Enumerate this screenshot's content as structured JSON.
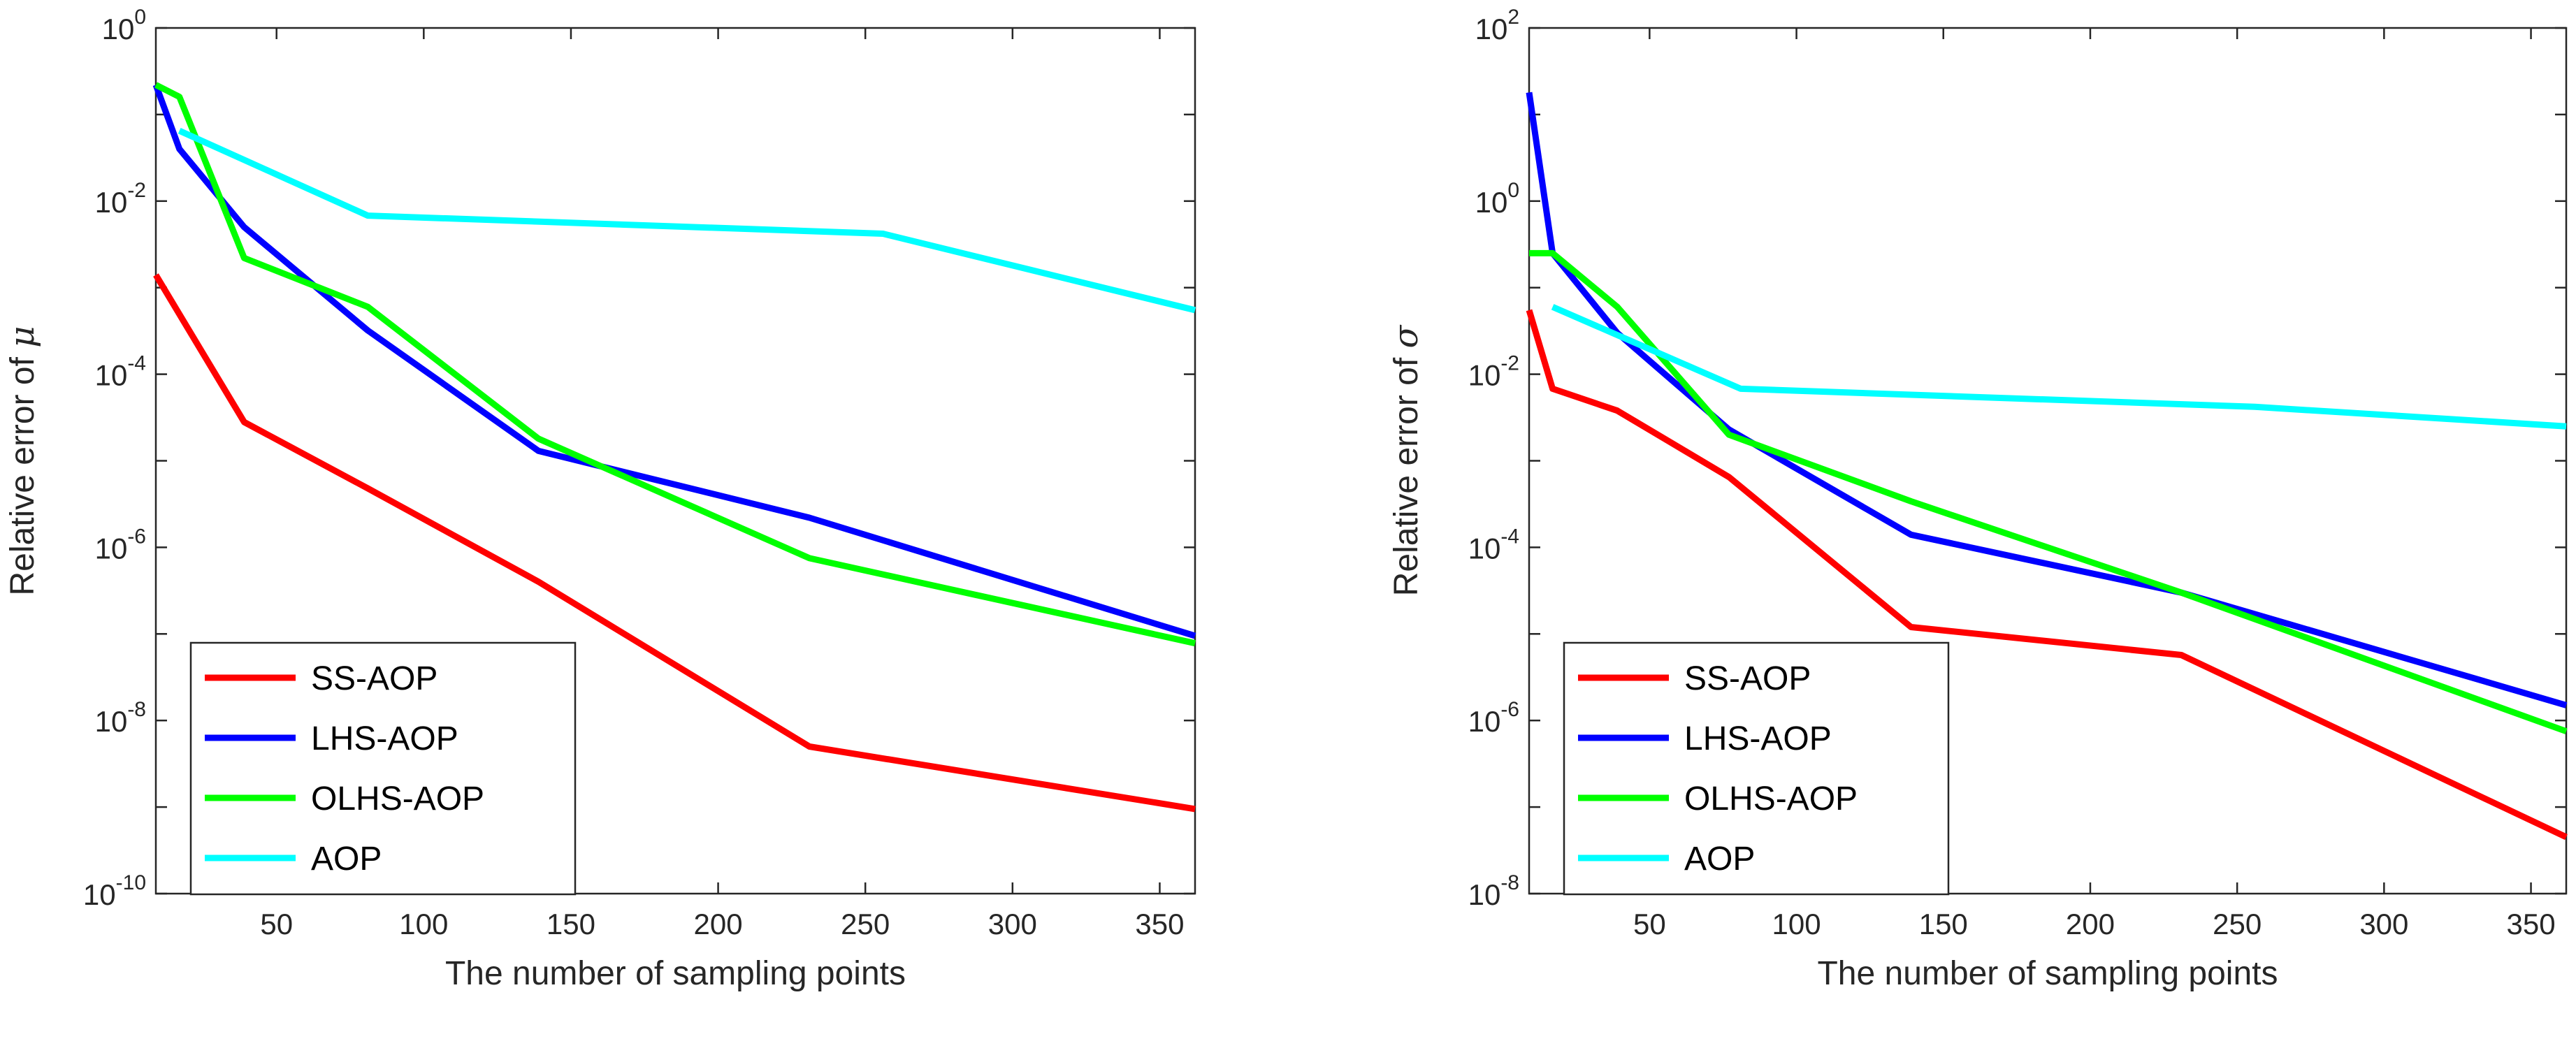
{
  "chart_data": [
    {
      "type": "line",
      "xlabel": "The number of sampling points",
      "ylabel_prefix": "Relative error of ",
      "ylabel_symbol": "μ",
      "yscale": "log",
      "xlim": [
        9,
        362
      ],
      "ylim_exponents": [
        -10,
        0
      ],
      "xticks": [
        50,
        100,
        150,
        200,
        250,
        300,
        350
      ],
      "yticks": [
        -10,
        -8,
        -6,
        -4,
        -2,
        0
      ],
      "legend": "bottom-left",
      "grid": false,
      "series": [
        {
          "name": "SS-AOP",
          "color": "#ff0000",
          "x": [
            9,
            39,
            81,
            139,
            231,
            362
          ],
          "y": [
            0.0014,
            2.8e-05,
            4.8e-06,
            4e-07,
            5e-09,
            9.5e-10
          ]
        },
        {
          "name": "LHS-AOP",
          "color": "#0000ff",
          "x": [
            9,
            17,
            39,
            81,
            139,
            231,
            362
          ],
          "y": [
            0.22,
            0.04,
            0.005,
            0.00032,
            1.3e-05,
            2.2e-06,
            9.5e-08
          ]
        },
        {
          "name": "OLHS-AOP",
          "color": "#00ff00",
          "x": [
            9,
            17,
            39,
            81,
            139,
            231,
            362
          ],
          "y": [
            0.22,
            0.16,
            0.0022,
            0.0006,
            1.8e-05,
            7.5e-07,
            7.8e-08
          ]
        },
        {
          "name": "AOP",
          "color": "#00ffff",
          "x": [
            17,
            81,
            256,
            362
          ],
          "y": [
            0.065,
            0.0068,
            0.0042,
            0.00055
          ]
        }
      ]
    },
    {
      "type": "line",
      "xlabel": "The number of sampling points",
      "ylabel_prefix": "Relative error of ",
      "ylabel_symbol": "σ",
      "yscale": "log",
      "xlim": [
        9,
        362
      ],
      "ylim_exponents": [
        -8,
        2
      ],
      "xticks": [
        50,
        100,
        150,
        200,
        250,
        300,
        350
      ],
      "yticks": [
        -8,
        -6,
        -4,
        -2,
        0,
        2
      ],
      "legend": "bottom-left",
      "grid": false,
      "series": [
        {
          "name": "SS-AOP",
          "color": "#ff0000",
          "x": [
            9,
            17,
            39,
            77,
            139,
            231,
            362
          ],
          "y": [
            0.055,
            0.0068,
            0.0038,
            0.00065,
            1.2e-05,
            5.7e-06,
            4.5e-08
          ]
        },
        {
          "name": "LHS-AOP",
          "color": "#0000ff",
          "x": [
            9,
            17,
            39,
            77,
            139,
            231,
            362
          ],
          "y": [
            18,
            0.25,
            0.03,
            0.0023,
            0.00014,
            3e-05,
            1.5e-06
          ]
        },
        {
          "name": "OLHS-AOP",
          "color": "#00ff00",
          "x": [
            9,
            17,
            39,
            77,
            139,
            231,
            362
          ],
          "y": [
            0.25,
            0.25,
            0.06,
            0.002,
            0.00034,
            3e-05,
            7.5e-07
          ]
        },
        {
          "name": "AOP",
          "color": "#00ffff",
          "x": [
            17,
            81,
            256,
            362
          ],
          "y": [
            0.06,
            0.0068,
            0.0042,
            0.0025
          ]
        }
      ]
    }
  ]
}
